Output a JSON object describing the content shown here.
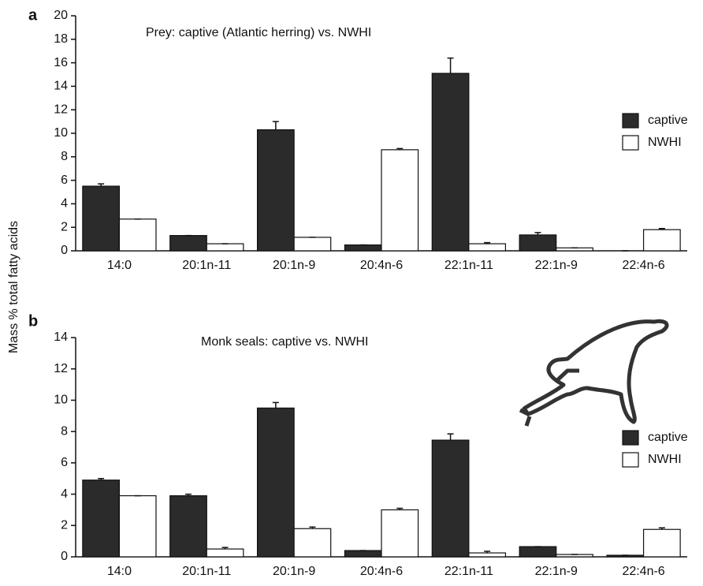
{
  "chart_data": [
    {
      "type": "bar",
      "panel_label": "a",
      "title": "Prey: captive (Atlantic herring) vs. NWHI",
      "ylabel": "Mass % total fatty acids",
      "categories": [
        "14:0",
        "20:1n-11",
        "20:1n-9",
        "20:4n-6",
        "22:1n-11",
        "22:1n-9",
        "22:4n-6"
      ],
      "series": [
        {
          "name": "captive",
          "color": "#2b2b2b",
          "values": [
            5.5,
            1.3,
            10.3,
            0.5,
            15.1,
            1.35,
            0
          ],
          "errors": [
            0.2,
            0,
            0.7,
            0,
            1.3,
            0.2,
            0
          ]
        },
        {
          "name": "NWHI",
          "color": "#ffffff",
          "values": [
            2.7,
            0.6,
            1.15,
            8.6,
            0.6,
            0.25,
            1.8
          ],
          "errors": [
            0,
            0,
            0,
            0.1,
            0.1,
            0,
            0.1
          ]
        }
      ],
      "ylim": [
        0,
        20
      ],
      "yticks": [
        0,
        2,
        4,
        6,
        8,
        10,
        12,
        14,
        16,
        18,
        20
      ],
      "legend": "right"
    },
    {
      "type": "bar",
      "panel_label": "b",
      "title": "Monk seals: captive vs. NWHI",
      "categories": [
        "14:0",
        "20:1n-11",
        "20:1n-9",
        "20:4n-6",
        "22:1n-11",
        "22:1n-9",
        "22:4n-6"
      ],
      "series": [
        {
          "name": "captive",
          "color": "#2b2b2b",
          "values": [
            4.9,
            3.9,
            9.5,
            0.4,
            7.45,
            0.65,
            0.1
          ],
          "errors": [
            0.1,
            0.1,
            0.35,
            0,
            0.4,
            0,
            0
          ]
        },
        {
          "name": "NWHI",
          "color": "#ffffff",
          "values": [
            3.9,
            0.5,
            1.8,
            3.0,
            0.25,
            0.15,
            1.75
          ],
          "errors": [
            0,
            0.1,
            0.1,
            0.1,
            0.1,
            0,
            0.1
          ]
        }
      ],
      "ylim": [
        0,
        14
      ],
      "yticks": [
        0,
        2,
        4,
        6,
        8,
        10,
        12,
        14
      ],
      "legend": "right"
    }
  ]
}
